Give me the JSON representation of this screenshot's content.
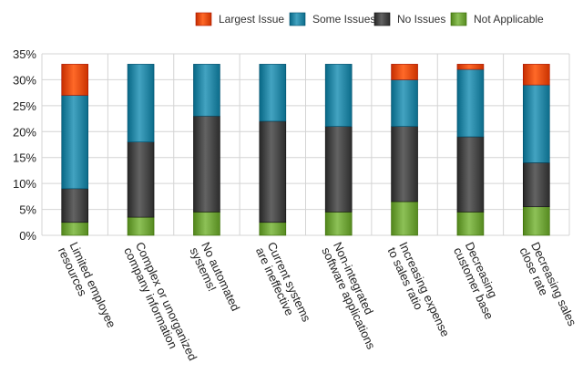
{
  "chart_data": {
    "type": "bar",
    "stacked": true,
    "categories": [
      [
        "Limited employee",
        "resources"
      ],
      [
        "Complex or unorganized",
        "company information"
      ],
      [
        "No automated",
        "systems!"
      ],
      [
        "Current systems",
        "are ineffective"
      ],
      [
        "Non-integrated",
        "software applications"
      ],
      [
        "Increasing expense",
        "to sales ratio"
      ],
      [
        "Decreasing",
        "customer base"
      ],
      [
        "Decreasing sales",
        "close rate"
      ]
    ],
    "series": [
      {
        "name": "Not Applicable",
        "values": [
          2.5,
          3.5,
          4.5,
          2.5,
          4.5,
          6.5,
          4.5,
          5.5
        ]
      },
      {
        "name": "No Issues",
        "values": [
          6.5,
          14.5,
          18.5,
          19.5,
          16.5,
          14.5,
          14.5,
          8.5
        ]
      },
      {
        "name": "Some Issues",
        "values": [
          18,
          15,
          10,
          11,
          12,
          9,
          13,
          15
        ]
      },
      {
        "name": "Largest Issue",
        "values": [
          6,
          0,
          0,
          0,
          0,
          3,
          1,
          4
        ]
      }
    ],
    "legend_order": [
      "Largest Issue",
      "Some Issues",
      "No Issues",
      "Not Applicable"
    ],
    "legend_position": "top-right",
    "yticks": [
      "0%",
      "5%",
      "10%",
      "15%",
      "20%",
      "25%",
      "30%",
      "35%"
    ],
    "ylim": [
      0,
      35
    ],
    "grid": true,
    "colors": {
      "Largest Issue": "#e8500f",
      "Some Issues": "#2a8aa8",
      "No Issues": "#4a4a4a",
      "Not Applicable": "#74a83e"
    }
  }
}
